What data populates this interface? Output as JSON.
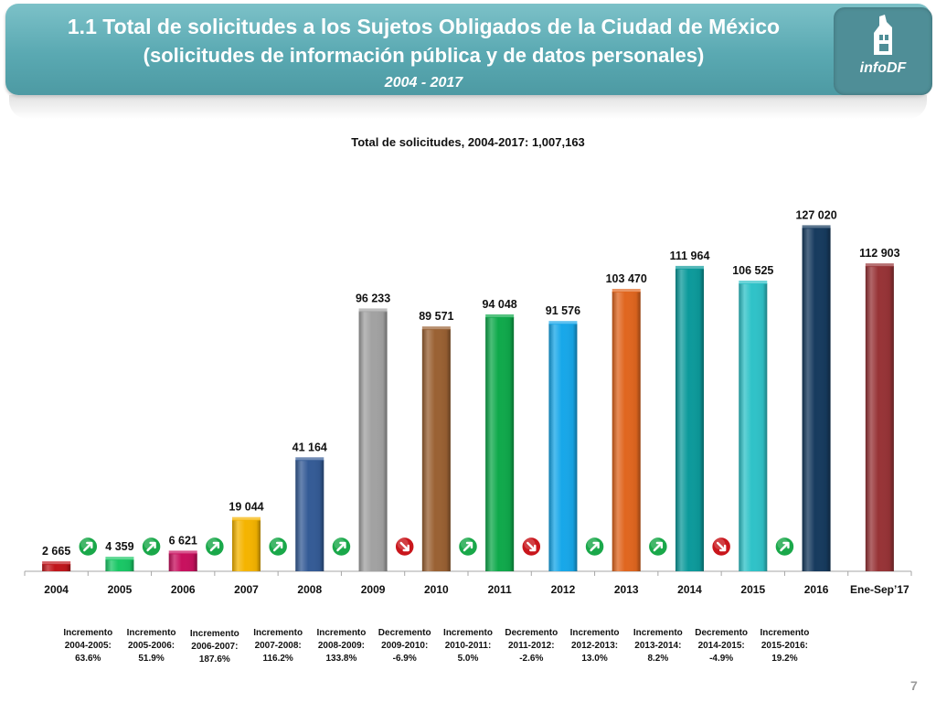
{
  "header": {
    "title_line1": "1.1 Total de solicitudes a los Sujetos Obligados de la Ciudad de México",
    "title_line2": "(solicitudes de información pública y de datos personales)",
    "period": "2004 - 2017",
    "logo_text": "infoDF"
  },
  "chart_data": {
    "type": "bar",
    "title": "Total de solicitudes, 2004-2017: 1,007,163",
    "categories": [
      "2004",
      "2005",
      "2006",
      "2007",
      "2008",
      "2009",
      "2010",
      "2011",
      "2012",
      "2013",
      "2014",
      "2015",
      "2016",
      "Ene-Sep’17"
    ],
    "values": [
      2665,
      4359,
      6621,
      19044,
      41164,
      96233,
      89571,
      94048,
      91576,
      103470,
      111964,
      106525,
      127020,
      112903
    ],
    "value_labels": [
      "2 665",
      "4 359",
      "6 621",
      "19 044",
      "41 164",
      "96 233",
      "89 571",
      "94 048",
      "91 576",
      "103 470",
      "111 964",
      "106 525",
      "127 020",
      "112 903"
    ],
    "colors": [
      "#c0161b",
      "#19c765",
      "#c8105e",
      "#f5b400",
      "#345b96",
      "#a2a2a2",
      "#9a6133",
      "#0fa94b",
      "#17a7e9",
      "#e0661f",
      "#0c9a9b",
      "#2fc2c8",
      "#163a5e",
      "#973336"
    ],
    "ylim": [
      0,
      140000
    ],
    "grid": false,
    "changes": [
      {
        "kind": "Incremento",
        "range": "2004-2005:",
        "pct": "63.6%",
        "direction": "up"
      },
      {
        "kind": "Incremento",
        "range": "2005-2006:",
        "pct": "51.9%",
        "direction": "up"
      },
      {
        "kind": "Incremento",
        "range": "2006-2007:",
        "pct": "187.6%",
        "direction": "up"
      },
      {
        "kind": "Incremento",
        "range": "2007-2008:",
        "pct": "116.2%",
        "direction": "up"
      },
      {
        "kind": "Incremento",
        "range": "2008-2009:",
        "pct": "133.8%",
        "direction": "up"
      },
      {
        "kind": "Decremento",
        "range": "2009-2010:",
        "pct": "-6.9%",
        "direction": "down"
      },
      {
        "kind": "Incremento",
        "range": "2010-2011:",
        "pct": "5.0%",
        "direction": "up"
      },
      {
        "kind": "Decremento",
        "range": "2011-2012:",
        "pct": "-2.6%",
        "direction": "down"
      },
      {
        "kind": "Incremento",
        "range": "2012-2013:",
        "pct": "13.0%",
        "direction": "up"
      },
      {
        "kind": "Incremento",
        "range": "2013-2014:",
        "pct": "8.2%",
        "direction": "up"
      },
      {
        "kind": "Decremento",
        "range": "2014-2015:",
        "pct": "-4.9%",
        "direction": "down"
      },
      {
        "kind": "Incremento",
        "range": "2015-2016:",
        "pct": "19.2%",
        "direction": "up"
      }
    ],
    "change_colors": {
      "up": "#1aa84a",
      "down": "#c9161c"
    }
  },
  "page_number": "7"
}
